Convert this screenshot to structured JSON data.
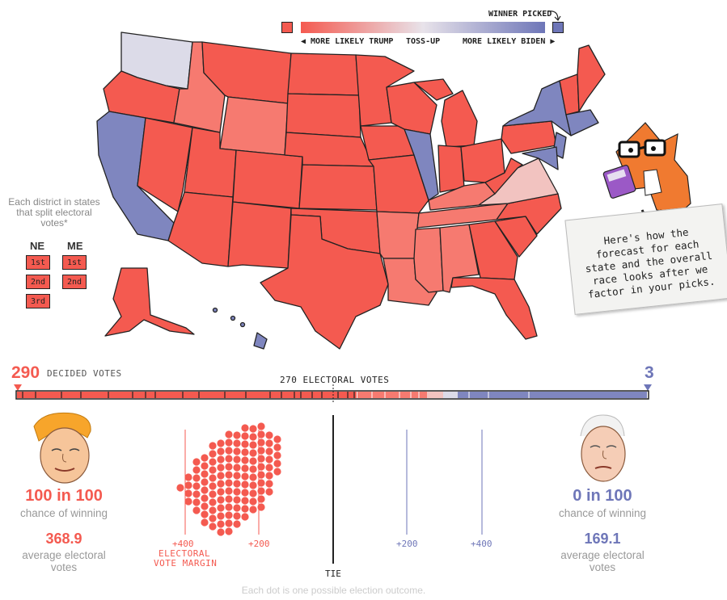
{
  "legend": {
    "winner_picked": "WINNER PICKED",
    "more_likely_trump": "◀ MORE LIKELY TRUMP",
    "toss_up": "TOSS-UP",
    "more_likely_biden": "MORE LIKELY BIDEN ▶",
    "trump_color": "#f45a50",
    "biden_color": "#6e76b8",
    "tossup_color": "#dcdbe8"
  },
  "districts": {
    "note": "Each district in states that split electoral votes*",
    "ne": {
      "label": "NE",
      "items": [
        "1st",
        "2nd",
        "3rd"
      ]
    },
    "me": {
      "label": "ME",
      "items": [
        "1st",
        "2nd"
      ]
    }
  },
  "bubble": {
    "text": "Here's how the forecast for each state and the overall race looks after we factor in your picks."
  },
  "bar": {
    "trump_decided": "290",
    "decided_label": "DECIDED VOTES",
    "biden_decided": "3",
    "threshold_label": "270 ELECTORAL VOTES"
  },
  "trump": {
    "chance": "100 in 100",
    "chance_label": "chance of winning",
    "avg": "368.9",
    "avg_label": "average electoral votes"
  },
  "biden": {
    "chance": "0 in 100",
    "chance_label": "chance of winning",
    "avg": "169.1",
    "avg_label": "average electoral votes"
  },
  "dist_chart": {
    "ticks_trump": [
      "+400",
      "+200"
    ],
    "ticks_biden": [
      "+200",
      "+400"
    ],
    "margin_label_1": "ELECTORAL",
    "margin_label_2": "VOTE MARGIN",
    "tie_label": "TIE"
  },
  "footer": "Each dot is one possible election outcome."
}
